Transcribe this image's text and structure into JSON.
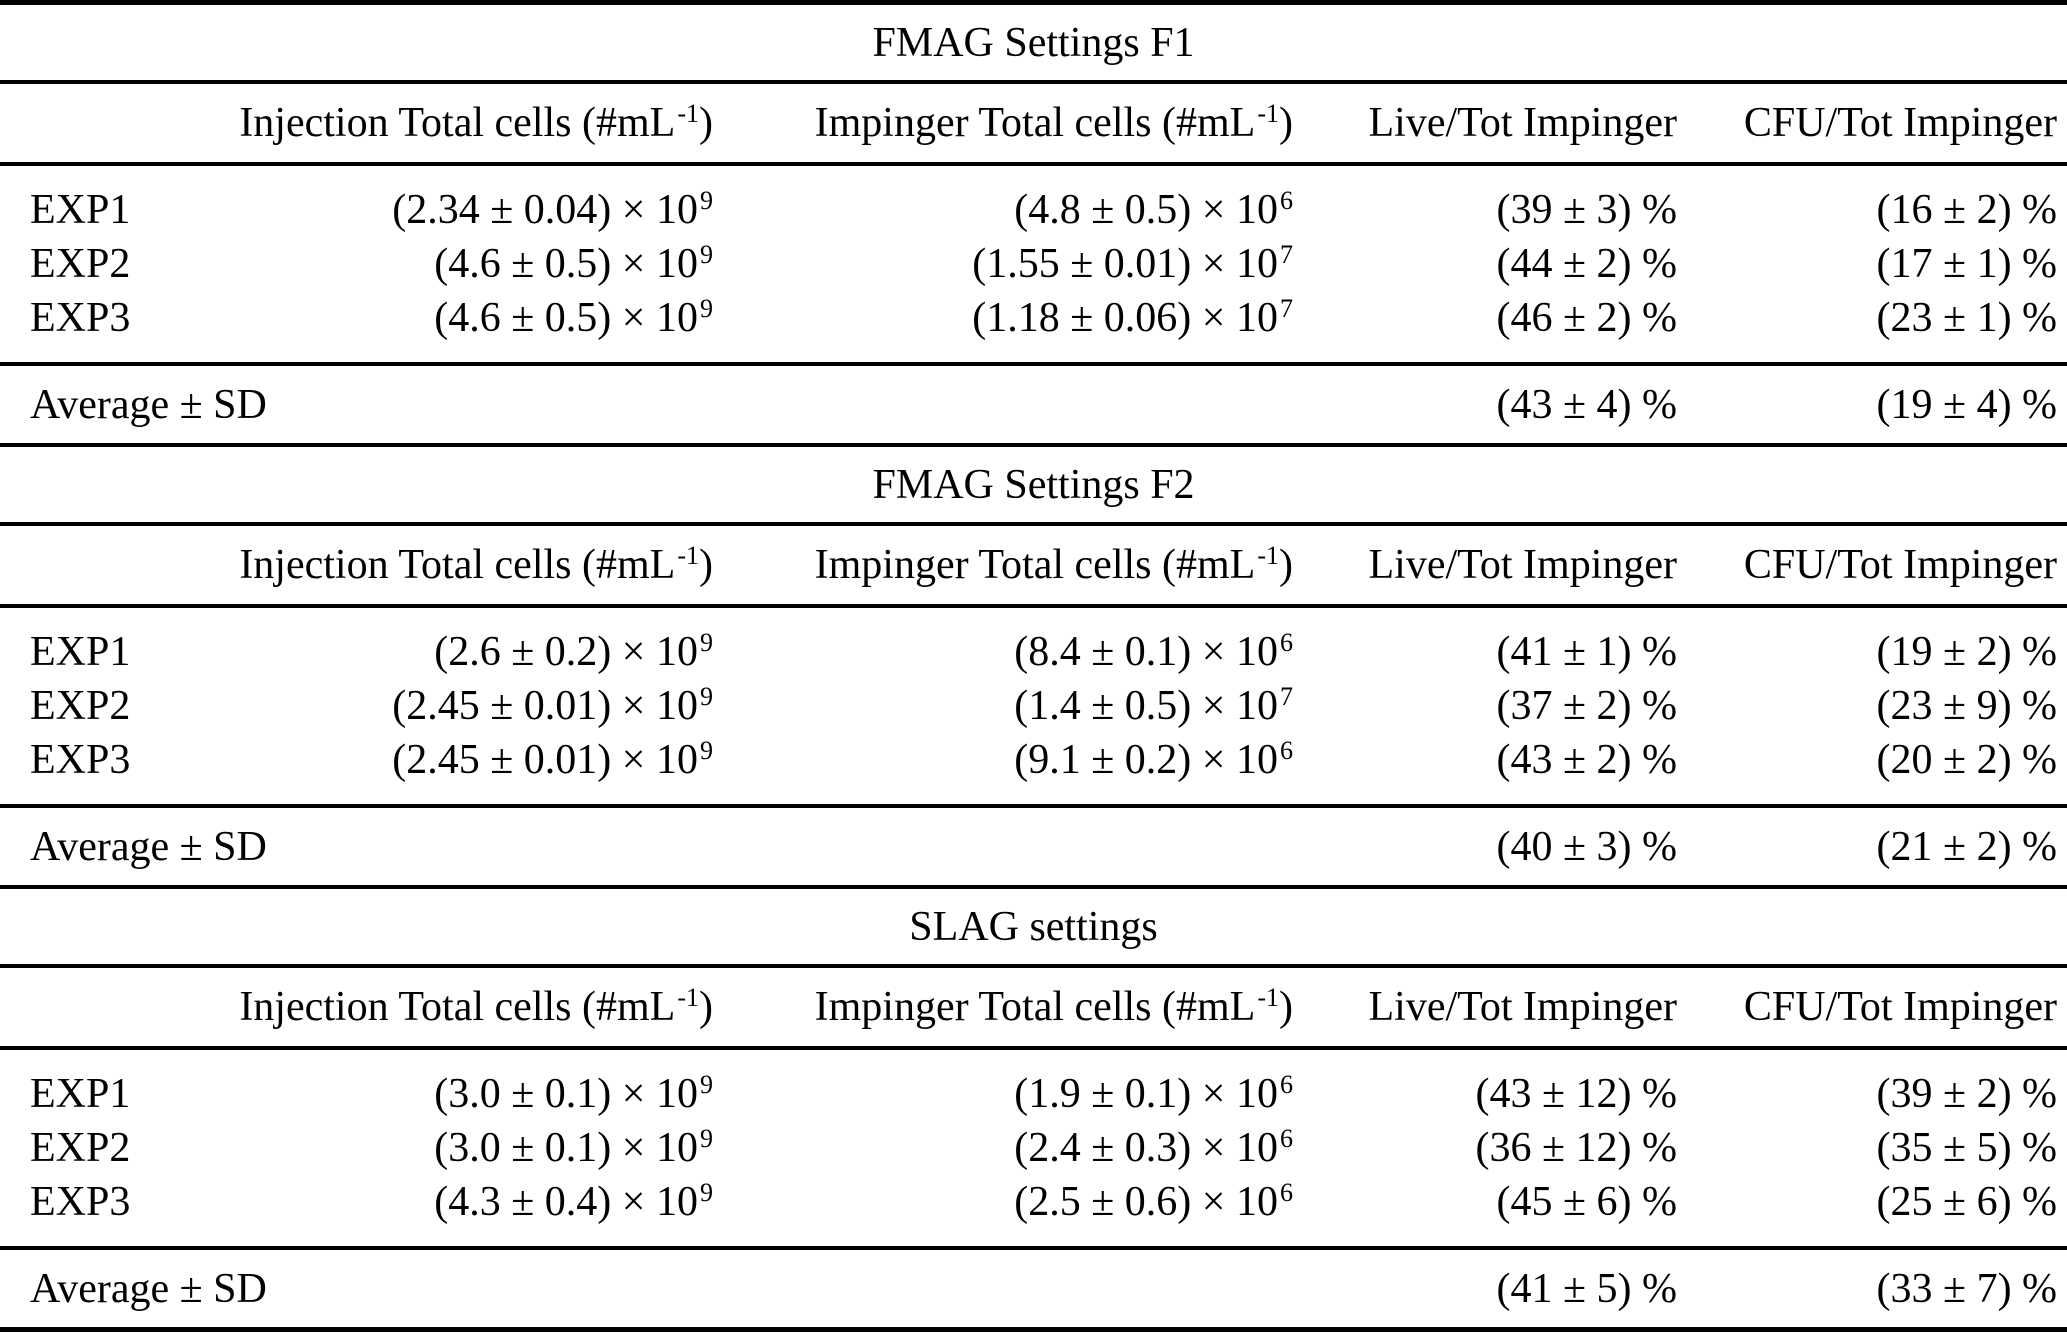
{
  "table": {
    "columns": [
      "Injection Total cells (#mL^-1)",
      "Impinger Total cells (#mL^-1)",
      "Live/Tot Impinger",
      "CFU/Tot Impinger"
    ],
    "sections": [
      {
        "title": "FMAG Settings F1",
        "rows": [
          {
            "label": "EXP1",
            "values": [
              "(2.34 ± 0.04) × 10^9",
              "(4.8 ± 0.5) × 10^6",
              "(39 ± 3) %",
              "(16 ± 2) %"
            ]
          },
          {
            "label": "EXP2",
            "values": [
              "(4.6 ± 0.5) × 10^9",
              "(1.55 ± 0.01) × 10^7",
              "(44 ± 2) %",
              "(17 ± 1) %"
            ]
          },
          {
            "label": "EXP3",
            "values": [
              "(4.6 ± 0.5) × 10^9",
              "(1.18 ± 0.06) × 10^7",
              "(46 ± 2) %",
              "(23 ± 1) %"
            ]
          }
        ],
        "average": {
          "label": "Average ± SD",
          "values": [
            "",
            "",
            "(43 ± 4) %",
            "(19 ± 4) %"
          ]
        }
      },
      {
        "title": "FMAG Settings F2",
        "rows": [
          {
            "label": "EXP1",
            "values": [
              "(2.6 ± 0.2) × 10^9",
              "(8.4 ± 0.1) × 10^6",
              "(41 ± 1) %",
              "(19 ± 2) %"
            ]
          },
          {
            "label": "EXP2",
            "values": [
              "(2.45 ± 0.01) × 10^9",
              "(1.4 ± 0.5) × 10^7",
              "(37 ± 2) %",
              "(23 ± 9) %"
            ]
          },
          {
            "label": "EXP3",
            "values": [
              "(2.45 ± 0.01) × 10^9",
              "(9.1 ± 0.2) × 10^6",
              "(43 ± 2) %",
              "(20 ± 2) %"
            ]
          }
        ],
        "average": {
          "label": "Average ± SD",
          "values": [
            "",
            "",
            "(40 ± 3) %",
            "(21 ± 2) %"
          ]
        }
      },
      {
        "title": "SLAG settings",
        "rows": [
          {
            "label": "EXP1",
            "values": [
              "(3.0 ± 0.1) × 10^9",
              "(1.9 ± 0.1) × 10^6",
              "(43 ± 12) %",
              "(39 ± 2) %"
            ]
          },
          {
            "label": "EXP2",
            "values": [
              "(3.0 ± 0.1) × 10^9",
              "(2.4 ± 0.3) × 10^6",
              "(36 ± 12) %",
              "(35 ± 5) %"
            ]
          },
          {
            "label": "EXP3",
            "values": [
              "(4.3 ± 0.4) × 10^9",
              "(2.5 ± 0.6) × 10^6",
              "(45 ± 6) %",
              "(25 ± 6) %"
            ]
          }
        ],
        "average": {
          "label": "Average ± SD",
          "values": [
            "",
            "",
            "(41 ± 5) %",
            "(33 ± 7) %"
          ]
        }
      }
    ]
  }
}
